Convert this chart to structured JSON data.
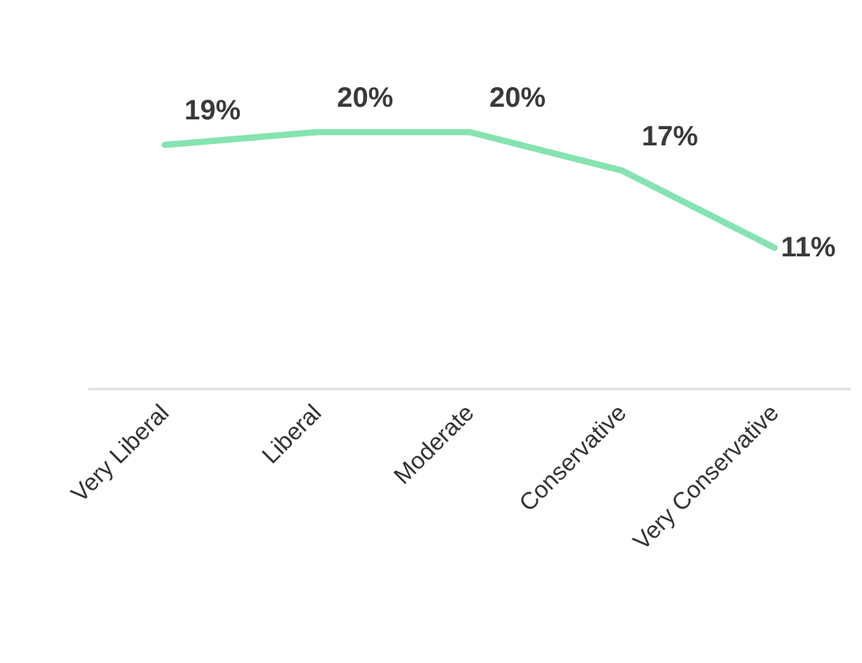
{
  "chart_data": {
    "type": "line",
    "categories": [
      "Very Liberal",
      "Liberal",
      "Moderate",
      "Conservative",
      "Very Conservative"
    ],
    "series": [
      {
        "color": "#86e3b0",
        "values": [
          19,
          20,
          20,
          17,
          11
        ],
        "value_labels": [
          "19%",
          "20%",
          "20%",
          "17%",
          "11%"
        ]
      }
    ],
    "tick_labels": "x",
    "grid": false,
    "marker": "none",
    "line_style": "solid"
  }
}
